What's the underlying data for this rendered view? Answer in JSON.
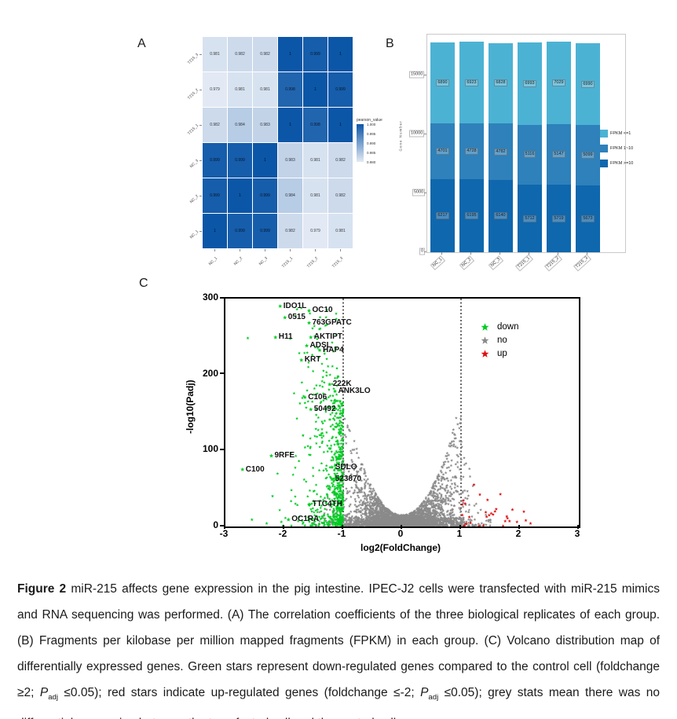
{
  "figure": {
    "panel_a_label": "A",
    "panel_b_label": "B",
    "panel_c_label": "C"
  },
  "chart_data": [
    {
      "id": "correlation_heatmap",
      "type": "heatmap",
      "legend_title": "pearson_value",
      "legend_ticks": [
        "1.000",
        "0.995",
        "0.990",
        "0.985",
        "0.980"
      ],
      "rows": [
        "T215_3",
        "T215_2",
        "T215_1",
        "NC_3",
        "NC_2",
        "NC_1"
      ],
      "cols": [
        "NC_1",
        "NC_2",
        "NC_3",
        "T215_1",
        "T215_2",
        "T215_3"
      ],
      "values": [
        [
          0.981,
          0.982,
          0.982,
          1,
          0.999,
          1
        ],
        [
          0.979,
          0.981,
          0.981,
          0.998,
          1,
          0.999
        ],
        [
          0.982,
          0.984,
          0.983,
          1,
          0.998,
          1
        ],
        [
          0.999,
          0.999,
          1,
          0.983,
          0.981,
          0.982
        ],
        [
          0.999,
          1,
          0.999,
          0.984,
          0.981,
          0.982
        ],
        [
          1,
          0.999,
          0.999,
          0.982,
          0.979,
          0.981
        ]
      ],
      "scale": {
        "min": 0.98,
        "max": 1.0,
        "light": "#e2e9f4",
        "dark": "#0b56a7"
      }
    },
    {
      "id": "fpkm_stacked_bar",
      "type": "bar",
      "categories": [
        "NC_1",
        "NC_2",
        "NC_3",
        "T215_1",
        "T215_2",
        "T215_3"
      ],
      "series": [
        {
          "name": "FPKM >=10",
          "color": "#0f67ad",
          "values": [
            6217,
            6195,
            6140,
            5712,
            5719,
            5673
          ]
        },
        {
          "name": "FPKM 1~10",
          "color": "#2e81ba",
          "values": [
            4701,
            4728,
            4782,
            5116,
            5147,
            5099
          ]
        },
        {
          "name": "FPKM <=1",
          "color": "#4cb2d4",
          "values": [
            6890,
            6923,
            6828,
            6993,
            7029,
            6990
          ]
        }
      ],
      "legend_order": [
        "FPKM <=1",
        "FPKM 1~10",
        "FPKM >=10"
      ],
      "ylabel": "Gene Number",
      "yticks": [
        0,
        5000,
        10000,
        15000
      ],
      "ymax": 17900
    },
    {
      "id": "volcano_plot",
      "type": "scatter",
      "xlabel": "log2(FoldChange)",
      "ylabel": "-log10(Padj)",
      "xticks": [
        -3,
        -2,
        -1,
        0,
        1,
        2,
        3
      ],
      "yticks": [
        0,
        100,
        200,
        300
      ],
      "xlim": [
        -3,
        3
      ],
      "ylim": [
        0,
        300
      ],
      "threshold_lines_x": [
        -1,
        1
      ],
      "legend": [
        {
          "label": "down",
          "color": "#00cc22"
        },
        {
          "label": "no",
          "color": "#8a8a8a"
        },
        {
          "label": "up",
          "color": "#e01010"
        }
      ],
      "gene_labels": [
        {
          "name": "IDO1L",
          "x": -2.07,
          "y": 290
        },
        {
          "name": "OC10",
          "x": -1.58,
          "y": 284
        },
        {
          "name": "0515",
          "x": -1.99,
          "y": 275
        },
        {
          "name": "763GPATC",
          "x": -1.58,
          "y": 268
        },
        {
          "name": "H11",
          "x": -2.15,
          "y": 249
        },
        {
          "name": "AKTIPT",
          "x": -1.55,
          "y": 249
        },
        {
          "name": "ADSL",
          "x": -1.62,
          "y": 238
        },
        {
          "name": "HAP4",
          "x": -1.4,
          "y": 232
        },
        {
          "name": "KRT",
          "x": -1.71,
          "y": 219
        },
        {
          "name": "222K",
          "x": -1.23,
          "y": 187
        },
        {
          "name": "ANK3LO",
          "x": -1.14,
          "y": 178
        },
        {
          "name": "C106",
          "x": -1.65,
          "y": 170
        },
        {
          "name": "50492",
          "x": -1.55,
          "y": 154
        },
        {
          "name": "9RFE",
          "x": -2.22,
          "y": 93
        },
        {
          "name": "C100",
          "x": -2.71,
          "y": 75
        },
        {
          "name": "SDLO",
          "x": -1.19,
          "y": 78
        },
        {
          "name": "523870",
          "x": -1.19,
          "y": 62
        },
        {
          "name": "TTC4TH",
          "x": -1.58,
          "y": 29
        },
        {
          "name": "OC1RA",
          "x": -1.93,
          "y": 9
        }
      ],
      "clouds": {
        "seed": 42,
        "down_count": 680,
        "no_count": 3200,
        "no_strip_count": 500,
        "up_count": 26,
        "down_extra": [
          [
            -2.62,
            248
          ],
          [
            -2.55,
            9
          ],
          [
            -2.3,
            4
          ],
          [
            -2.2,
            40
          ],
          [
            -2.05,
            6
          ]
        ],
        "up_extra": [
          [
            1.22,
            55
          ],
          [
            1.32,
            42
          ],
          [
            1.07,
            30
          ],
          [
            1.45,
            35
          ],
          [
            2.1,
            8
          ],
          [
            1.95,
            6
          ],
          [
            2.18,
            4
          ],
          [
            1.75,
            7
          ]
        ]
      }
    }
  ],
  "caption": {
    "label": "Figure 2",
    "part1": " miR-215 affects gene expression in the pig intestine. IPEC-J2 cells were transfected with miR-215 mimics and RNA sequencing was performed. (A) The correlation coefficients of the three biological replicates of each group. (B) Fragments per kilobase per million mapped fragments (FPKM) in each group. (C) Volcano distribution map of differentially expressed genes. Green stars represent down-regulated genes compared to the control cell (foldchange ≥2; ",
    "p1": "P",
    "sub1": "adj",
    "part2": " ≤0.05); red stars indicate up-regulated genes (foldchange ≤-2; ",
    "p2": "P",
    "sub2": "adj",
    "part3": " ≤0.05); grey stats mean there was no differential expression between the transfected cell and the control cell"
  }
}
